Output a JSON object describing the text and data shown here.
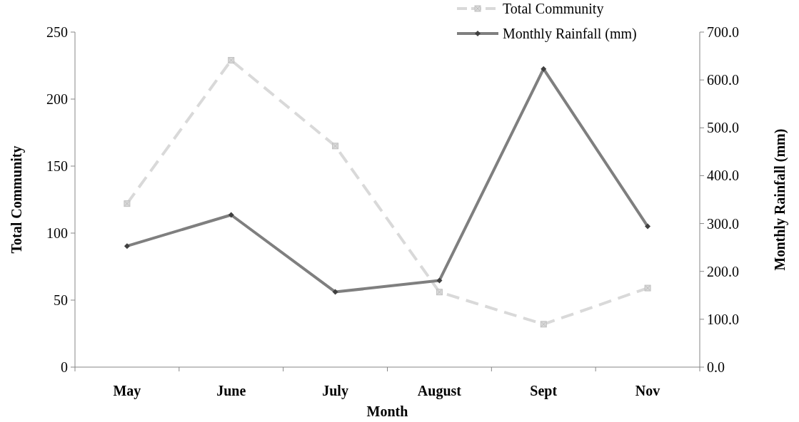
{
  "chart_data": {
    "type": "line",
    "xlabel": "Month",
    "ylabel": "Total Community",
    "y2label": "Monthly Rainfall (mm)",
    "categories": [
      "May",
      "June",
      "July",
      "August",
      "Sept",
      "Nov"
    ],
    "series": [
      {
        "name": "Total Community",
        "color": "#d9d9d9",
        "values": [
          122,
          229,
          165,
          56,
          32,
          59
        ],
        "marker": "square",
        "line_style": "dashed"
      },
      {
        "name": "Monthly Rainfall (mm)",
        "color": "#7f7f7f",
        "values": [
          253,
          318,
          157,
          181,
          623,
          294
        ],
        "axis": "y2",
        "marker": "diamond",
        "line_style": "solid"
      }
    ],
    "ylim": [
      0,
      250
    ],
    "yticks": [
      0,
      50,
      100,
      150,
      200,
      250
    ],
    "y2lim": [
      0,
      700
    ],
    "y2ticks": [
      {
        "value": 0,
        "label": "0.0"
      },
      {
        "value": 100,
        "label": "100.0"
      },
      {
        "value": 200,
        "label": "200.0"
      },
      {
        "value": 300,
        "label": "300.0"
      },
      {
        "value": 400,
        "label": "400.0"
      },
      {
        "value": 500,
        "label": "500.0"
      },
      {
        "value": 600,
        "label": "600.0"
      },
      {
        "value": 700,
        "label": "700.0"
      }
    ],
    "grid": false,
    "legend": "top right"
  }
}
